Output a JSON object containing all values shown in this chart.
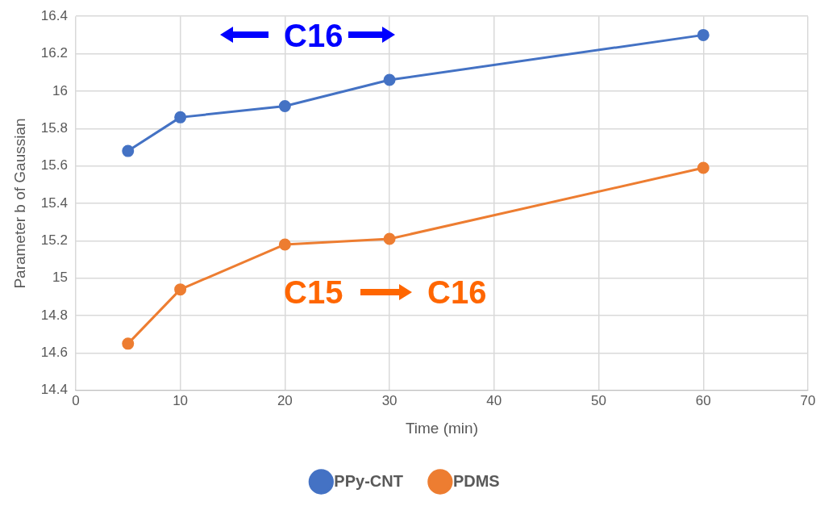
{
  "chart_data": {
    "type": "line",
    "xlabel": "Time (min)",
    "ylabel": "Parameter b of Gaussian",
    "x": [
      5,
      10,
      20,
      30,
      60
    ],
    "series": [
      {
        "name": "PPy-CNT",
        "color": "#4472c4",
        "values": [
          15.68,
          15.86,
          15.92,
          16.06,
          16.3
        ]
      },
      {
        "name": "PDMS",
        "color": "#ed7d31",
        "values": [
          14.65,
          14.94,
          15.18,
          15.21,
          15.59
        ]
      }
    ],
    "xlim": [
      0,
      70
    ],
    "xticks": [
      0,
      10,
      20,
      30,
      40,
      50,
      60,
      70
    ],
    "ylim": [
      14.4,
      16.4
    ],
    "yticks": [
      14.4,
      14.6,
      14.8,
      15,
      15.2,
      15.4,
      15.6,
      15.8,
      16,
      16.2,
      16.4
    ],
    "grid": true,
    "legend": "bottom",
    "marker": "circle",
    "line_style": "solid",
    "annotations": [
      "C16",
      "C15",
      "C16"
    ]
  }
}
